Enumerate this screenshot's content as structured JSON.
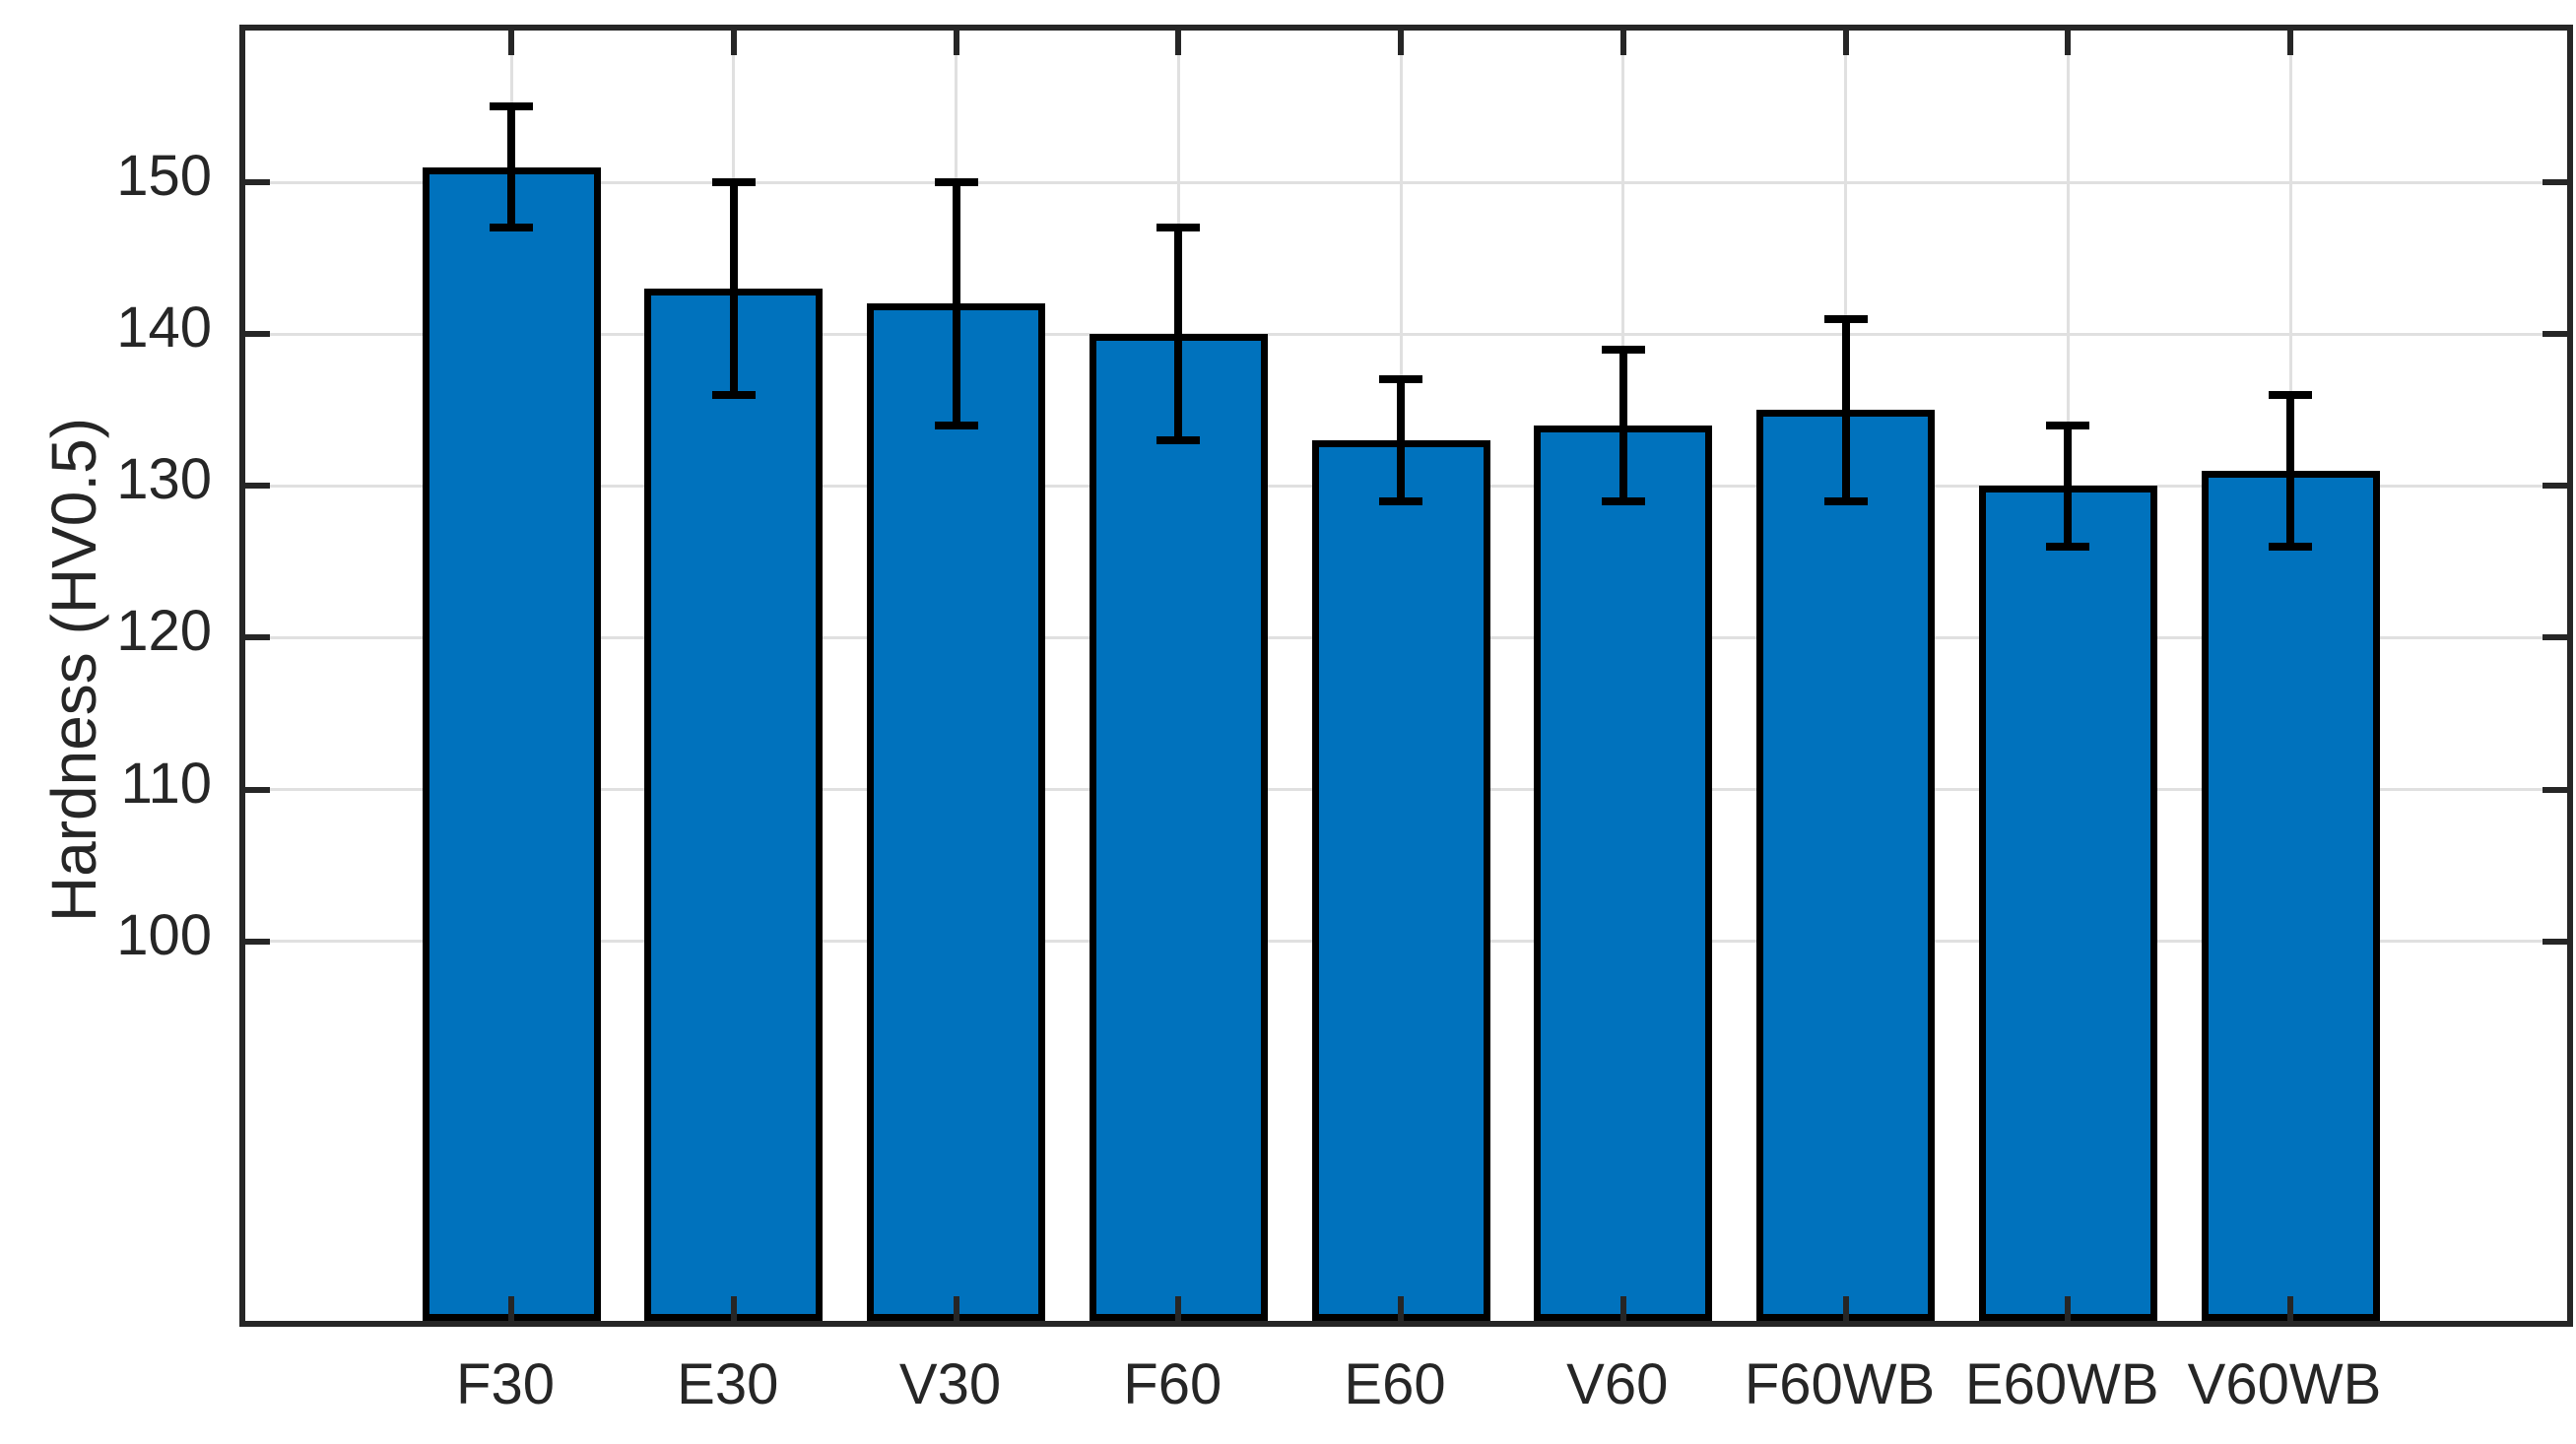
{
  "chart_data": {
    "type": "bar",
    "title": "",
    "xlabel": "",
    "ylabel": "Hardness (HV0.5)",
    "categories": [
      "F30",
      "E30",
      "V30",
      "F60",
      "E60",
      "V60",
      "F60WB",
      "E60WB",
      "V60WB"
    ],
    "values": [
      151,
      143,
      142,
      140,
      133,
      134,
      135,
      130,
      131
    ],
    "error_bars_plus_minus": [
      4,
      7,
      8,
      7,
      4,
      5,
      6,
      4,
      5
    ],
    "yticks": [
      100,
      110,
      120,
      130,
      140,
      150
    ],
    "ylim": [
      75,
      160
    ],
    "grid": "on",
    "legend": "none",
    "colors": {
      "bar_fill": "#0072bd",
      "bar_edge": "#000000",
      "error_bar": "#000000",
      "axis": "#262626",
      "grid_line": "#e0e0e0",
      "tick_label": "#262626",
      "background": "#ffffff"
    }
  }
}
